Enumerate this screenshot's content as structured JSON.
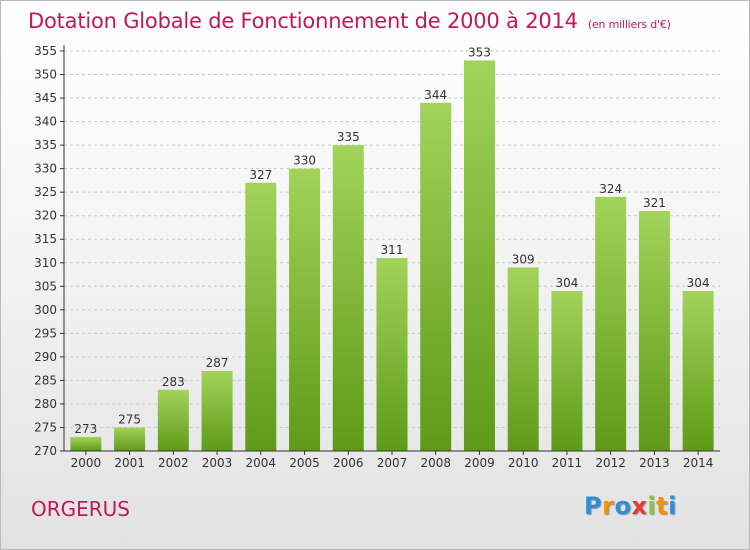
{
  "title": "Dotation Globale de Fonctionnement de 2000 à 2014",
  "subtitle": "(en milliers d'€)",
  "commune": "ORGERUS",
  "logo": {
    "letters": [
      "P",
      "r",
      "o",
      "x",
      "i",
      "t",
      "i"
    ],
    "colors": [
      "#2e8fd6",
      "#f39200",
      "#2e8fd6",
      "#e53935",
      "#8bc34a",
      "#f39200",
      "#2e8fd6"
    ]
  },
  "colors": {
    "title": "#c2185b",
    "bar_top": "#a2d35a",
    "bar_bottom": "#5e9a18",
    "grid": "#c8c8c8",
    "axis": "#333333"
  },
  "chart_data": {
    "type": "bar",
    "title": "Dotation Globale de Fonctionnement de 2000 à 2014",
    "xlabel": "",
    "ylabel": "",
    "categories": [
      "2000",
      "2001",
      "2002",
      "2003",
      "2004",
      "2005",
      "2006",
      "2007",
      "2008",
      "2009",
      "2010",
      "2011",
      "2012",
      "2013",
      "2014"
    ],
    "values": [
      273,
      275,
      283,
      287,
      327,
      330,
      335,
      311,
      344,
      353,
      309,
      304,
      324,
      321,
      304
    ],
    "ylim": [
      270,
      355
    ],
    "yticks": [
      270,
      275,
      280,
      285,
      290,
      295,
      300,
      305,
      310,
      315,
      320,
      325,
      330,
      335,
      340,
      345,
      350,
      355
    ],
    "grid": true
  }
}
